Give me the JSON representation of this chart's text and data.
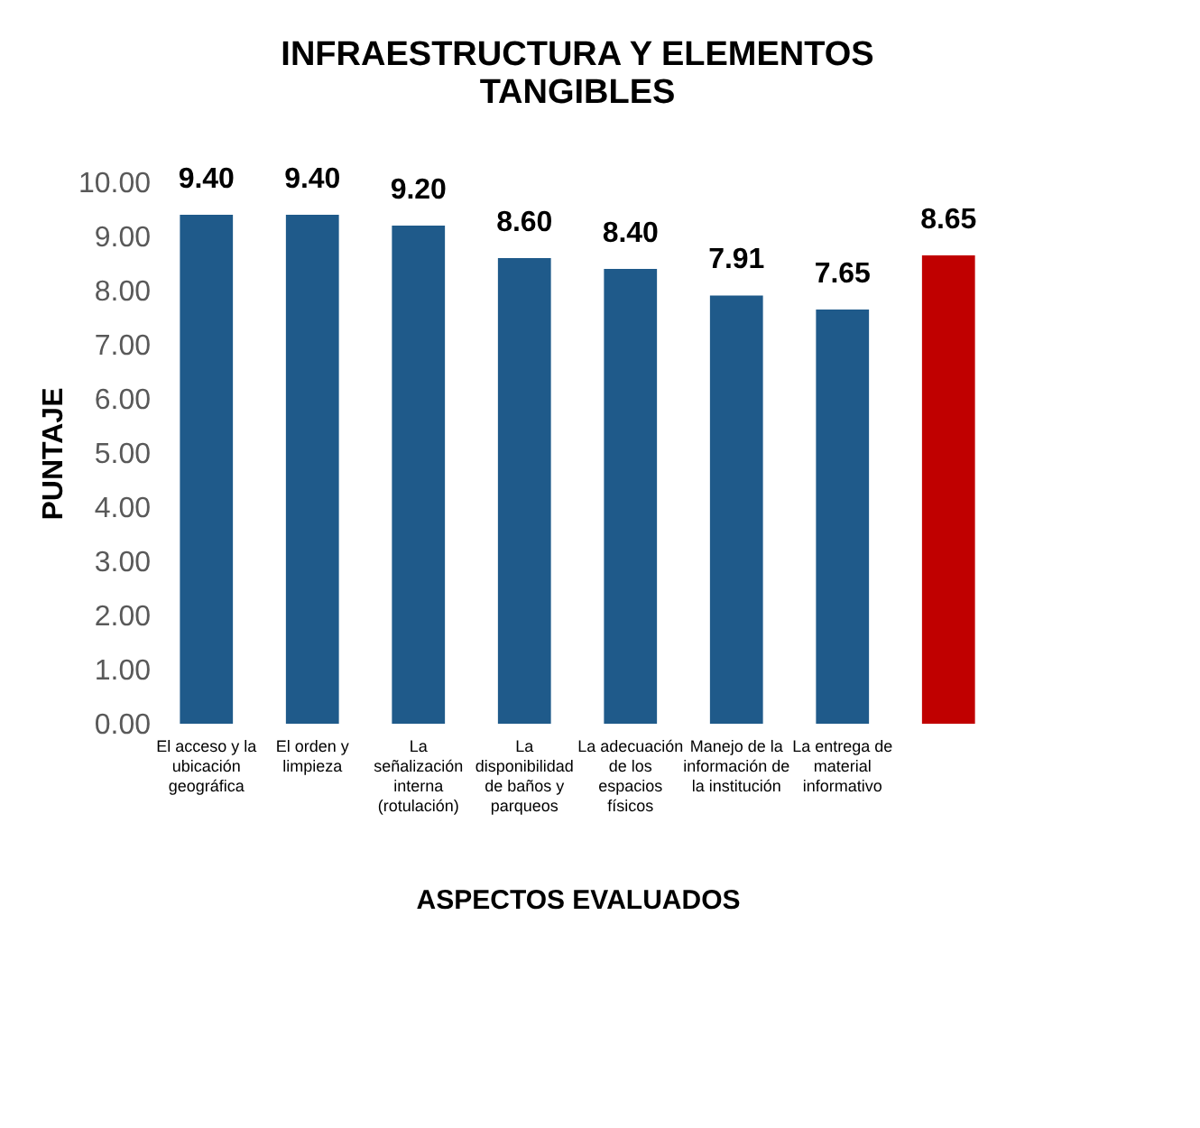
{
  "chart_data": {
    "type": "bar",
    "title": "INFRAESTRUCTURA Y ELEMENTOS TANGIBLES",
    "xlabel": "ASPECTOS EVALUADOS",
    "ylabel": "PUNTAJE",
    "categories": [
      "El acceso y la ubicación geográfica",
      "El orden y limpieza",
      "La señalización interna (rotulación)",
      "La disponibilidad de baños y parqueos",
      "La adecuación de los espacios físicos",
      "Manejo de la información de la institución",
      "La entrega de material informativo",
      null
    ],
    "values": [
      9.4,
      9.4,
      9.2,
      8.6,
      8.4,
      7.91,
      7.65,
      8.65
    ],
    "value_labels": [
      "9.40",
      "9.40",
      "9.20",
      "8.60",
      "8.40",
      "7.91",
      "7.65",
      "8.65"
    ],
    "colors": [
      "#1f5a8a",
      "#1f5a8a",
      "#1f5a8a",
      "#1f5a8a",
      "#1f5a8a",
      "#1f5a8a",
      "#1f5a8a",
      "#c00000"
    ],
    "ylim": [
      0,
      10
    ],
    "yticks": [
      {
        "value": 0,
        "label": "0.00"
      },
      {
        "value": 1,
        "label": "1.00"
      },
      {
        "value": 2,
        "label": "2.00"
      },
      {
        "value": 3,
        "label": "3.00"
      },
      {
        "value": 4,
        "label": "4.00"
      },
      {
        "value": 5,
        "label": "5.00"
      },
      {
        "value": 6,
        "label": "6.00"
      },
      {
        "value": 7,
        "label": "7.00"
      },
      {
        "value": 8,
        "label": "8.00"
      },
      {
        "value": 9,
        "label": "9.00"
      },
      {
        "value": 10,
        "label": "10.00"
      }
    ],
    "grid": false
  }
}
